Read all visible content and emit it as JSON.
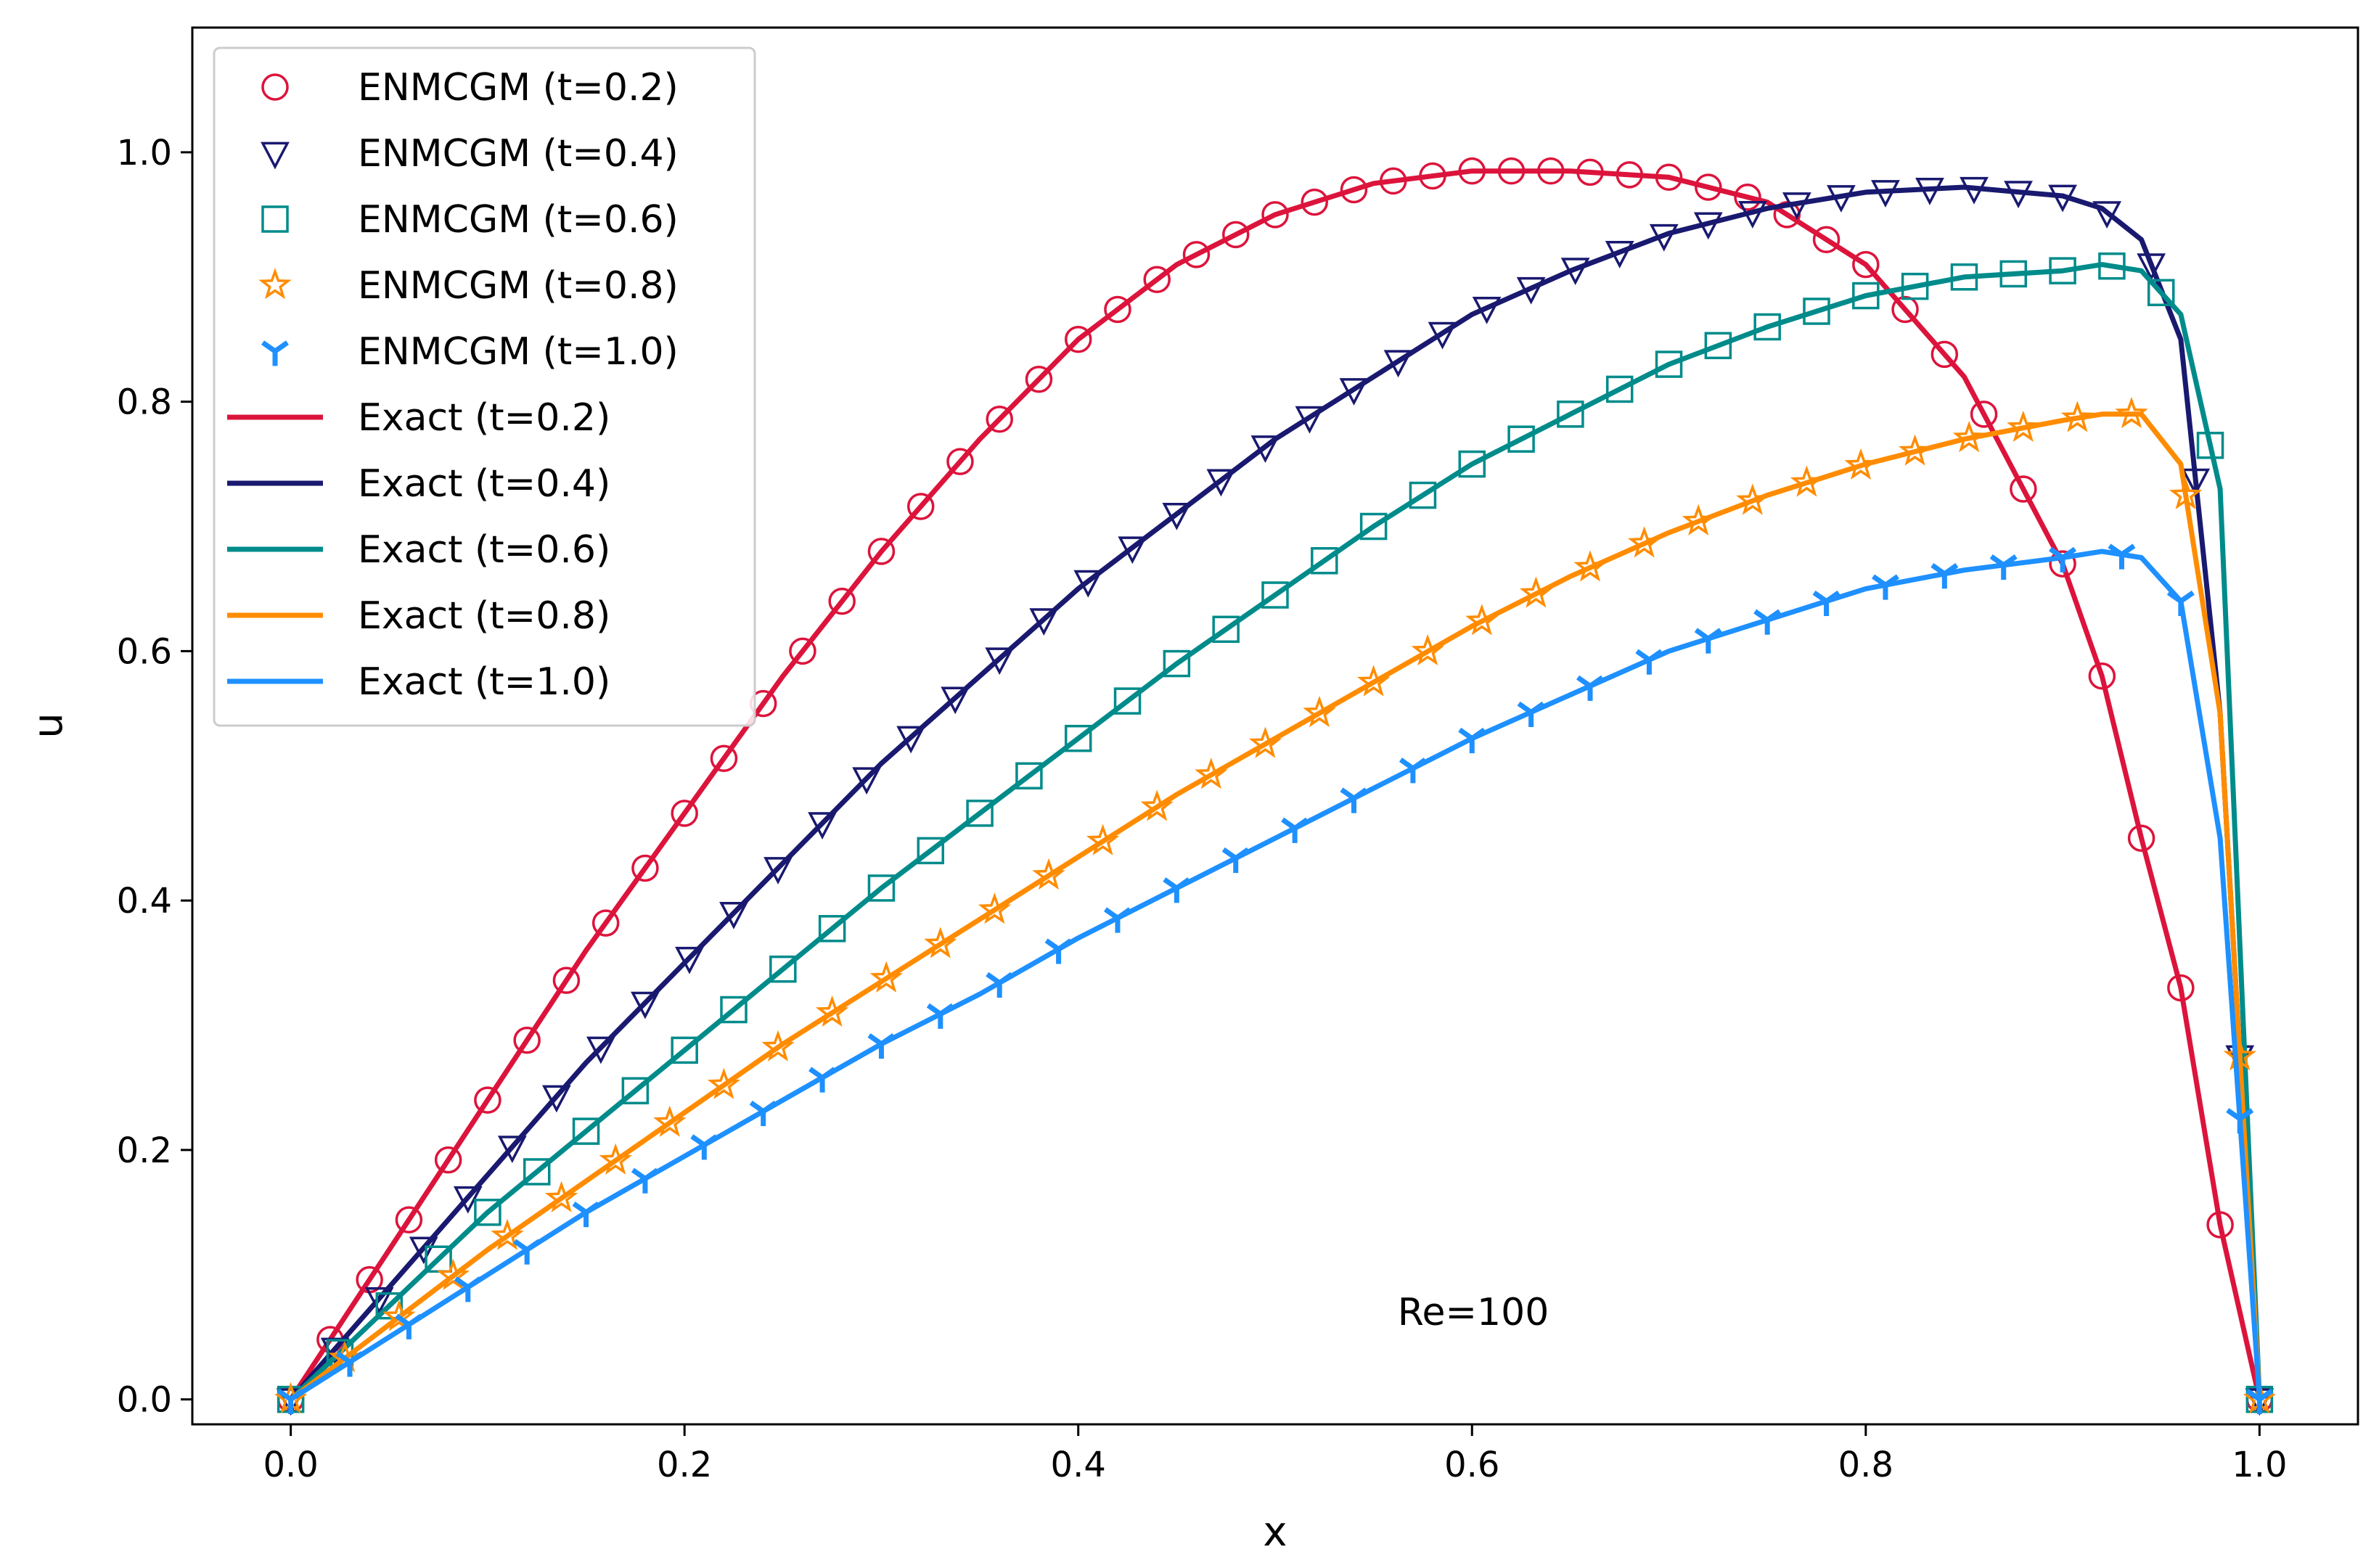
{
  "chart_data": {
    "type": "line",
    "title": "",
    "xlabel": "x",
    "ylabel": "u",
    "xlim": [
      -0.05,
      1.05
    ],
    "ylim": [
      -0.02,
      1.1
    ],
    "xticks": [
      0.0,
      0.2,
      0.4,
      0.6,
      0.8,
      1.0
    ],
    "xtick_labels": [
      "0.0",
      "0.2",
      "0.4",
      "0.6",
      "0.8",
      "1.0"
    ],
    "yticks": [
      0.0,
      0.2,
      0.4,
      0.6,
      0.8,
      1.0
    ],
    "ytick_labels": [
      "0.0",
      "0.2",
      "0.4",
      "0.6",
      "0.8",
      "1.0"
    ],
    "grid": false,
    "legend_position": "top-left",
    "annotation": {
      "text": "Re=100",
      "x": 0.6,
      "y": 0.07
    },
    "x": [
      0.0,
      0.05,
      0.1,
      0.15,
      0.2,
      0.25,
      0.3,
      0.35,
      0.4,
      0.45,
      0.5,
      0.55,
      0.6,
      0.65,
      0.7,
      0.75,
      0.8,
      0.85,
      0.9,
      0.92,
      0.94,
      0.96,
      0.98,
      1.0
    ],
    "series": [
      {
        "name": "t=0.2",
        "exact_label": "Exact (t=0.2)",
        "marker_label": "ENMCGM (t=0.2)",
        "color": "#dc143c",
        "marker": "circle",
        "values": [
          0.0,
          0.12,
          0.24,
          0.36,
          0.47,
          0.58,
          0.68,
          0.77,
          0.85,
          0.91,
          0.95,
          0.975,
          0.985,
          0.985,
          0.98,
          0.96,
          0.91,
          0.82,
          0.67,
          0.58,
          0.45,
          0.33,
          0.14,
          0.0
        ]
      },
      {
        "name": "t=0.4",
        "exact_label": "Exact (t=0.4)",
        "marker_label": "ENMCGM (t=0.4)",
        "color": "#191970",
        "marker": "triangle-down",
        "values": [
          0.0,
          0.09,
          0.18,
          0.27,
          0.35,
          0.43,
          0.51,
          0.58,
          0.65,
          0.71,
          0.77,
          0.82,
          0.87,
          0.905,
          0.935,
          0.955,
          0.968,
          0.972,
          0.965,
          0.955,
          0.93,
          0.85,
          0.55,
          0.0
        ]
      },
      {
        "name": "t=0.6",
        "exact_label": "Exact (t=0.6)",
        "marker_label": "ENMCGM (t=0.6)",
        "color": "#008b8b",
        "marker": "square",
        "values": [
          0.0,
          0.075,
          0.15,
          0.215,
          0.28,
          0.345,
          0.41,
          0.47,
          0.53,
          0.59,
          0.645,
          0.7,
          0.75,
          0.79,
          0.83,
          0.86,
          0.885,
          0.9,
          0.905,
          0.91,
          0.905,
          0.87,
          0.73,
          0.0
        ]
      },
      {
        "name": "t=0.8",
        "exact_label": "Exact (t=0.8)",
        "marker_label": "ENMCGM (t=0.8)",
        "color": "#ff8c00",
        "marker": "star",
        "values": [
          0.0,
          0.06,
          0.12,
          0.175,
          0.23,
          0.285,
          0.335,
          0.385,
          0.435,
          0.485,
          0.53,
          0.575,
          0.62,
          0.66,
          0.695,
          0.725,
          0.75,
          0.77,
          0.785,
          0.79,
          0.79,
          0.75,
          0.55,
          0.0
        ]
      },
      {
        "name": "t=1.0",
        "exact_label": "Exact (t=1.0)",
        "marker_label": "ENMCGM (t=1.0)",
        "color": "#1e90ff",
        "marker": "tri-down",
        "values": [
          0.0,
          0.05,
          0.1,
          0.15,
          0.195,
          0.24,
          0.285,
          0.325,
          0.37,
          0.41,
          0.45,
          0.49,
          0.53,
          0.565,
          0.6,
          0.625,
          0.65,
          0.665,
          0.675,
          0.68,
          0.675,
          0.64,
          0.45,
          0.0
        ]
      }
    ]
  }
}
